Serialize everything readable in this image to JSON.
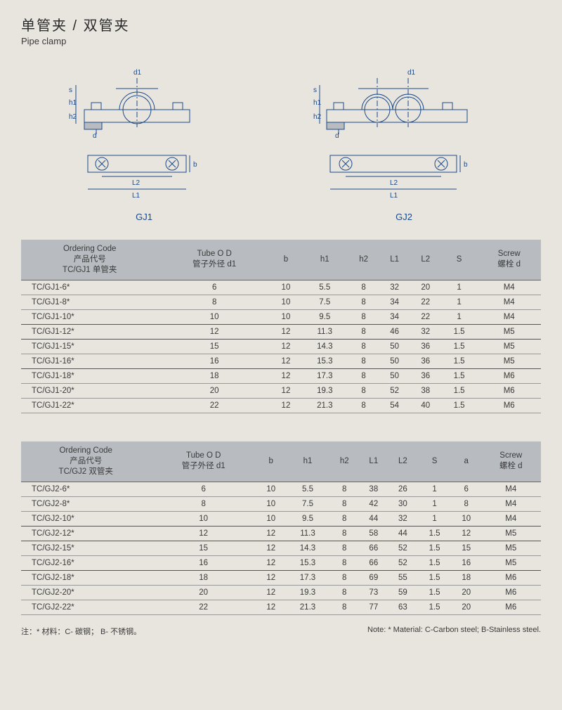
{
  "header": {
    "title_cn": "单管夹 / 双管夹",
    "title_en": "Pipe clamp"
  },
  "diagrams": {
    "stroke": "#1a4a8a",
    "label1": "GJ1",
    "label2": "GJ2",
    "dims": {
      "d1": "d1",
      "s": "s",
      "h1": "h1",
      "h2": "h2",
      "d": "d",
      "b": "b",
      "L1": "L1",
      "L2": "L2"
    }
  },
  "table1": {
    "headers": {
      "code": [
        "Ordering Code",
        "产品代号",
        "TC/GJ1 单管夹"
      ],
      "tube": [
        "Tube O D",
        "管子外径 d1"
      ],
      "b": "b",
      "h1": "h1",
      "h2": "h2",
      "L1": "L1",
      "L2": "L2",
      "S": "S",
      "screw": [
        "Screw",
        "螺栓 d"
      ]
    },
    "rows": [
      [
        "TC/GJ1-6*",
        "6",
        "10",
        "5.5",
        "8",
        "32",
        "20",
        "1",
        "M4"
      ],
      [
        "TC/GJ1-8*",
        "8",
        "10",
        "7.5",
        "8",
        "34",
        "22",
        "1",
        "M4"
      ],
      [
        "TC/GJ1-10*",
        "10",
        "10",
        "9.5",
        "8",
        "34",
        "22",
        "1",
        "M4"
      ],
      [
        "TC/GJ1-12*",
        "12",
        "12",
        "11.3",
        "8",
        "46",
        "32",
        "1.5",
        "M5"
      ],
      [
        "TC/GJ1-15*",
        "15",
        "12",
        "14.3",
        "8",
        "50",
        "36",
        "1.5",
        "M5"
      ],
      [
        "TC/GJ1-16*",
        "16",
        "12",
        "15.3",
        "8",
        "50",
        "36",
        "1.5",
        "M5"
      ],
      [
        "TC/GJ1-18*",
        "18",
        "12",
        "17.3",
        "8",
        "50",
        "36",
        "1.5",
        "M6"
      ],
      [
        "TC/GJ1-20*",
        "20",
        "12",
        "19.3",
        "8",
        "52",
        "38",
        "1.5",
        "M6"
      ],
      [
        "TC/GJ1-22*",
        "22",
        "12",
        "21.3",
        "8",
        "54",
        "40",
        "1.5",
        "M6"
      ]
    ],
    "group_ends": [
      2,
      3,
      5
    ]
  },
  "table2": {
    "headers": {
      "code": [
        "Ordering Code",
        "产品代号",
        "TC/GJ2 双管夹"
      ],
      "tube": [
        "Tube O D",
        "管子外径 d1"
      ],
      "b": "b",
      "h1": "h1",
      "h2": "h2",
      "L1": "L1",
      "L2": "L2",
      "S": "S",
      "a": "a",
      "screw": [
        "Screw",
        "螺栓 d"
      ]
    },
    "rows": [
      [
        "TC/GJ2-6*",
        "6",
        "10",
        "5.5",
        "8",
        "38",
        "26",
        "1",
        "6",
        "M4"
      ],
      [
        "TC/GJ2-8*",
        "8",
        "10",
        "7.5",
        "8",
        "42",
        "30",
        "1",
        "8",
        "M4"
      ],
      [
        "TC/GJ2-10*",
        "10",
        "10",
        "9.5",
        "8",
        "44",
        "32",
        "1",
        "10",
        "M4"
      ],
      [
        "TC/GJ2-12*",
        "12",
        "12",
        "11.3",
        "8",
        "58",
        "44",
        "1.5",
        "12",
        "M5"
      ],
      [
        "TC/GJ2-15*",
        "15",
        "12",
        "14.3",
        "8",
        "66",
        "52",
        "1.5",
        "15",
        "M5"
      ],
      [
        "TC/GJ2-16*",
        "16",
        "12",
        "15.3",
        "8",
        "66",
        "52",
        "1.5",
        "16",
        "M5"
      ],
      [
        "TC/GJ2-18*",
        "18",
        "12",
        "17.3",
        "8",
        "69",
        "55",
        "1.5",
        "18",
        "M6"
      ],
      [
        "TC/GJ2-20*",
        "20",
        "12",
        "19.3",
        "8",
        "73",
        "59",
        "1.5",
        "20",
        "M6"
      ],
      [
        "TC/GJ2-22*",
        "22",
        "12",
        "21.3",
        "8",
        "77",
        "63",
        "1.5",
        "20",
        "M6"
      ]
    ],
    "group_ends": [
      2,
      3,
      5
    ]
  },
  "notes": {
    "cn": "注：* 材料：C- 碳钢；  B- 不锈钢。",
    "en": "Note:  * Material: C-Carbon steel; B-Stainless steel."
  }
}
